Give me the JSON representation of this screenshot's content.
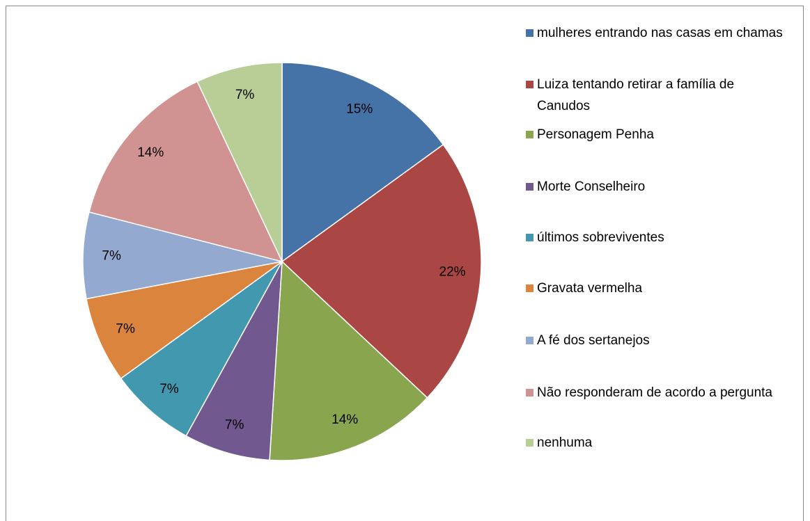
{
  "chart_data": {
    "type": "pie",
    "categories": [
      "mulheres entrando nas casas em chamas",
      "Luiza tentando retirar a família de Canudos",
      "Personagem Penha",
      "Morte Conselheiro",
      "últimos sobreviventes",
      "Gravata vermelha",
      "A fé dos sertanejos",
      "Não responderam de acordo a pergunta",
      "nenhuma"
    ],
    "values": [
      15,
      22,
      14,
      7,
      7,
      7,
      7,
      14,
      7
    ],
    "value_labels": [
      "15%",
      "22%",
      "14%",
      "7%",
      "7%",
      "7%",
      "7%",
      "14%",
      "7%"
    ],
    "colors": [
      "#4572a7",
      "#aa4643",
      "#89a54e",
      "#71588f",
      "#4198af",
      "#db843d",
      "#93a9cf",
      "#d19392",
      "#b9cd96"
    ],
    "legend": "right"
  }
}
